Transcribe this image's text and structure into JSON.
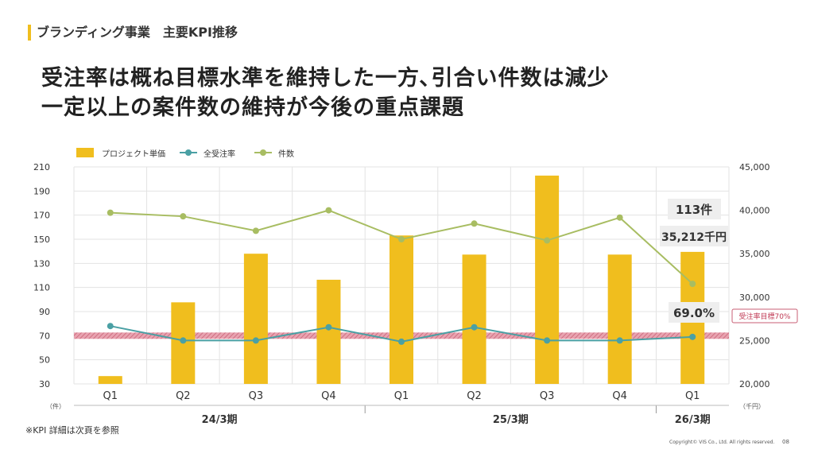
{
  "header": {
    "section_title": "ブランディング事業　主要KPI推移",
    "headline_line1": "受注率は概ね目標水準を維持した一方､引合い件数は減少",
    "headline_line2": "一定以上の案件数の維持が今後の重点課題"
  },
  "chart_data": {
    "type": "bar",
    "categories": [
      "Q1",
      "Q2",
      "Q3",
      "Q4",
      "Q1",
      "Q2",
      "Q3",
      "Q4",
      "Q1"
    ],
    "period_groups": [
      {
        "label": "24/3期",
        "start": 0,
        "end": 3
      },
      {
        "label": "25/3期",
        "start": 4,
        "end": 7
      },
      {
        "label": "26/3期",
        "start": 8,
        "end": 8
      }
    ],
    "series": [
      {
        "name": "プロジェクト単価",
        "type": "bar",
        "axis": "right",
        "color": "#f0be1e",
        "values": [
          20900,
          29400,
          35000,
          32000,
          37100,
          34900,
          44000,
          34900,
          35212
        ]
      },
      {
        "name": "全受注率",
        "type": "line",
        "axis": "left",
        "color": "#4aa0a4",
        "values": [
          78,
          66,
          66,
          77,
          65,
          77,
          66,
          66,
          69
        ]
      },
      {
        "name": "件数",
        "type": "line",
        "axis": "left",
        "color": "#a8bd62",
        "values": [
          172,
          169,
          157,
          174,
          150,
          163,
          149,
          168,
          113
        ]
      }
    ],
    "left_axis": {
      "unit": "（件）",
      "ticks": [
        30,
        50,
        70,
        90,
        110,
        130,
        150,
        170,
        190,
        210
      ],
      "ylim": [
        30,
        210
      ]
    },
    "right_axis": {
      "unit": "（千円）",
      "ticks": [
        "20,000",
        "25,000",
        "30,000",
        "35,000",
        "40,000",
        "45,000"
      ],
      "ylim": [
        20000,
        45000
      ]
    },
    "target": {
      "label": "受注率目標70%",
      "value": 70
    },
    "annotations": {
      "count": "113件",
      "price": "35,212千円",
      "rate": "69.0%"
    },
    "legend_position": "top-left",
    "grid": true
  },
  "footer": {
    "footnote": "※KPI 詳細は次頁を参照",
    "copyright": "Copyright© VIS Co., Ltd. All rights reserved.",
    "page": "08"
  }
}
